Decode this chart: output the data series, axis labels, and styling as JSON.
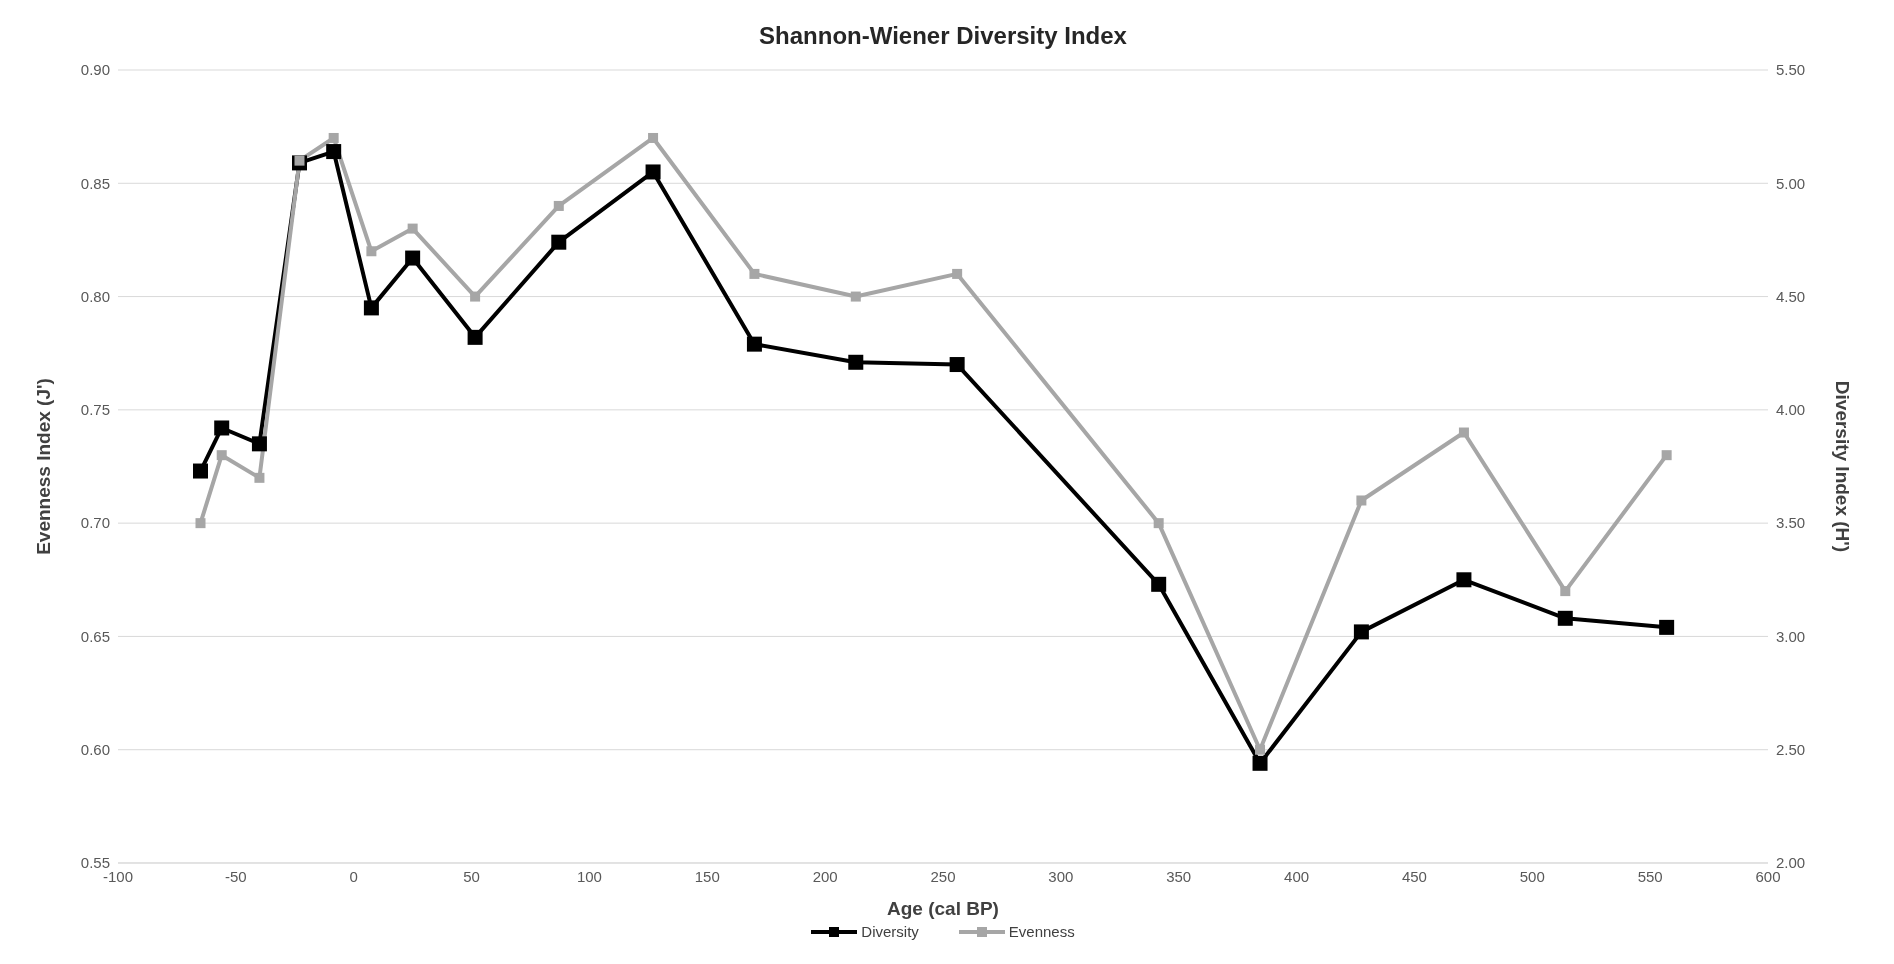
{
  "chart_data": {
    "type": "line",
    "title": "Shannon-Wiener Diversity Index",
    "xlabel": "Age (cal BP)",
    "ylabel": "Evenness Index (J')",
    "y2label": "Diversity Index (H')",
    "x": [
      -65,
      -56,
      -40,
      -23,
      -8.5,
      7.5,
      25,
      51.5,
      87,
      127,
      170,
      213,
      256,
      341.5,
      384.5,
      427.5,
      471,
      514,
      557
    ],
    "series": [
      {
        "name": "Diversity",
        "color": "#000000",
        "axis": "y2",
        "values": [
          3.73,
          3.92,
          3.85,
          5.09,
          5.14,
          4.45,
          4.67,
          4.32,
          4.74,
          5.05,
          4.29,
          4.21,
          4.2,
          3.23,
          2.44,
          3.02,
          3.25,
          3.08,
          3.04
        ]
      },
      {
        "name": "Evenness",
        "color": "#a6a6a6",
        "values": [
          0.7,
          0.73,
          0.72,
          0.86,
          0.87,
          0.82,
          0.83,
          0.8,
          0.84,
          0.87,
          0.81,
          0.8,
          0.81,
          0.7,
          0.6,
          0.71,
          0.74,
          0.67,
          0.73
        ]
      }
    ],
    "xlim": [
      -100,
      600
    ],
    "xticks": [
      -100,
      -50,
      0,
      50,
      100,
      150,
      200,
      250,
      300,
      350,
      400,
      450,
      500,
      550,
      600
    ],
    "ylim": [
      0.55,
      0.9
    ],
    "yticks": [
      {
        "value": 0.55,
        "label": "0.55"
      },
      {
        "value": 0.6,
        "label": "0.60"
      },
      {
        "value": 0.65,
        "label": "0.65"
      },
      {
        "value": 0.7,
        "label": "0.70"
      },
      {
        "value": 0.75,
        "label": "0.75"
      },
      {
        "value": 0.8,
        "label": "0.80"
      },
      {
        "value": 0.85,
        "label": "0.85"
      },
      {
        "value": 0.9,
        "label": "0.90"
      }
    ],
    "y2lim": [
      2,
      5.5
    ],
    "y2ticks": [
      {
        "value": 2,
        "label": "2.00"
      },
      {
        "value": 2.5,
        "label": "2.50"
      },
      {
        "value": 3,
        "label": "3.00"
      },
      {
        "value": 3.5,
        "label": "3.50"
      },
      {
        "value": 4,
        "label": "4.00"
      },
      {
        "value": 4.5,
        "label": "4.50"
      },
      {
        "value": 5,
        "label": "5.00"
      },
      {
        "value": 5.5,
        "label": "5.50"
      }
    ],
    "grid": "y",
    "legend": "bottom",
    "marker": "square",
    "line_style": "solid"
  }
}
